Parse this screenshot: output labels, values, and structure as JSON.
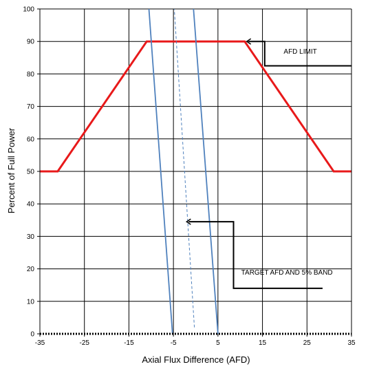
{
  "chart_data": {
    "type": "line",
    "xlabel": "Axial Flux Difference (AFD)",
    "ylabel": "Percent of Full Power",
    "xlim": [
      -35,
      35
    ],
    "ylim": [
      0,
      100
    ],
    "xticks": [
      -35,
      -25,
      -15,
      -5,
      5,
      15,
      25,
      35
    ],
    "yticks": [
      0,
      10,
      20,
      30,
      40,
      50,
      60,
      70,
      80,
      90,
      100
    ],
    "grid": true,
    "series": [
      {
        "name": "AFD LIMIT",
        "color": "#e8191a",
        "style": "solid",
        "points": [
          [
            -35,
            50
          ],
          [
            -31,
            50
          ],
          [
            -11,
            90
          ],
          [
            11,
            90
          ],
          [
            31,
            50
          ],
          [
            35,
            50
          ]
        ]
      },
      {
        "color": "#4f81bd",
        "style": "solid",
        "points": [
          [
            -5.2,
            0
          ],
          [
            -10.5,
            100
          ]
        ]
      },
      {
        "color": "#4f81bd",
        "style": "solid",
        "points": [
          [
            5.0,
            0
          ],
          [
            -0.5,
            100
          ]
        ]
      },
      {
        "color": "#4f81bd",
        "style": "dashed",
        "points": [
          [
            -0.3,
            2
          ],
          [
            -4.8,
            100
          ]
        ]
      }
    ],
    "annotations": [
      {
        "text": "AFD LIMIT",
        "target": [
          11,
          90
        ]
      },
      {
        "text": "TARGET AFD AND 5% BAND",
        "target": [
          -2.5,
          34.5
        ]
      }
    ]
  }
}
